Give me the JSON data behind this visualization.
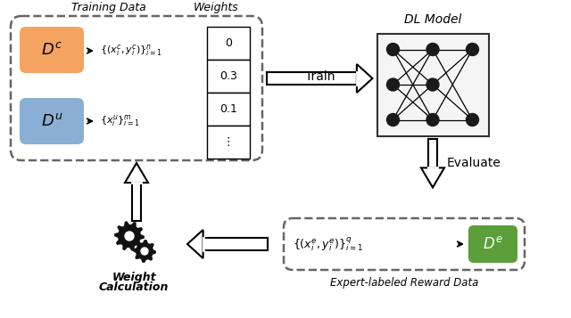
{
  "bg_color": "#ffffff",
  "dc_color": "#F4A460",
  "du_color": "#8BAFD4",
  "de_color": "#5B9E3A",
  "weights": [
    "0",
    "0.3",
    "0.1",
    "⋮"
  ],
  "training_data_label_1": "Training Data",
  "training_data_label_2": "Weights",
  "dl_model_label": "DL Model",
  "train_label": "Train",
  "evaluate_label": "Evaluate",
  "weight_calc_label_1": "Weight",
  "weight_calc_label_2": "Calculation",
  "expert_label": "Expert-labeled Reward Data"
}
